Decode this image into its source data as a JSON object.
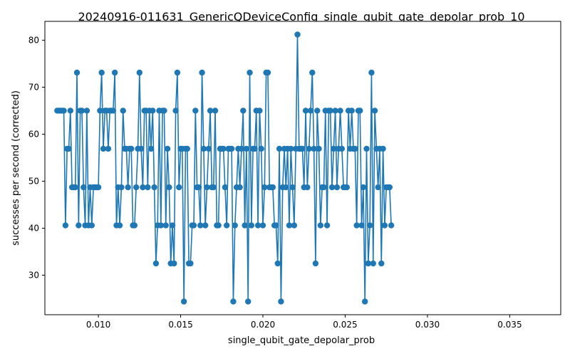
{
  "chart_data": {
    "type": "line",
    "title": "20240916-011631_GenericQDeviceConfig_single_qubit_gate_depolar_prob_10",
    "xlabel": "single_qubit_gate_depolar_prob",
    "ylabel": "successes per second (corrected)",
    "xlim": [
      0.00675,
      0.0381
    ],
    "ylim": [
      21.6,
      84.0
    ],
    "xticks": [
      0.01,
      0.015,
      0.02,
      0.025,
      0.03,
      0.035
    ],
    "xtick_labels": [
      "0.010",
      "0.015",
      "0.020",
      "0.025",
      "0.030",
      "0.035"
    ],
    "yticks": [
      30,
      40,
      50,
      60,
      70,
      80
    ],
    "ytick_labels": [
      "30",
      "40",
      "50",
      "60",
      "70",
      "80"
    ],
    "grid": false,
    "legend": "none",
    "series_color": "#1f77b4",
    "x_start": 0.0075,
    "x_step": 0.0001,
    "y": [
      65,
      65,
      65,
      65,
      65,
      40.6,
      56.9,
      56.9,
      65,
      48.7,
      48.7,
      48.7,
      73.1,
      40.6,
      65,
      65,
      48.7,
      40.6,
      65,
      40.6,
      48.7,
      40.6,
      48.7,
      48.7,
      48.7,
      48.7,
      65,
      73.1,
      56.9,
      65,
      65,
      56.9,
      65,
      65,
      65,
      73.1,
      40.6,
      48.7,
      40.6,
      48.7,
      65,
      56.9,
      56.9,
      48.7,
      56.9,
      56.9,
      40.6,
      40.6,
      48.7,
      56.9,
      73.1,
      56.9,
      48.7,
      65,
      65,
      48.7,
      65,
      56.9,
      65,
      48.7,
      32.5,
      40.6,
      65,
      40.6,
      65,
      65,
      40.6,
      56.9,
      48.7,
      32.5,
      40.6,
      32.5,
      65,
      73.1,
      48.7,
      56.9,
      56.9,
      24.4,
      56.9,
      56.9,
      32.5,
      32.5,
      40.6,
      40.6,
      65,
      48.7,
      48.7,
      40.6,
      73.1,
      56.9,
      40.6,
      48.7,
      56.9,
      65,
      48.7,
      48.7,
      65,
      40.6,
      40.6,
      56.9,
      56.9,
      56.9,
      48.7,
      40.6,
      56.9,
      56.9,
      56.9,
      24.4,
      40.6,
      48.7,
      56.9,
      48.7,
      56.9,
      65,
      40.6,
      56.9,
      24.4,
      73.1,
      40.6,
      56.9,
      56.9,
      65,
      40.6,
      65,
      56.9,
      40.6,
      48.7,
      73.1,
      73.1,
      48.7,
      48.7,
      48.7,
      40.6,
      40.6,
      32.5,
      56.9,
      24.4,
      48.7,
      56.9,
      48.7,
      56.9,
      40.6,
      56.9,
      48.7,
      40.6,
      56.9,
      81.2,
      56.9,
      56.9,
      56.9,
      48.7,
      65,
      48.7,
      56.9,
      65,
      73.1,
      56.9,
      32.5,
      65,
      56.9,
      40.6,
      48.7,
      48.7,
      65,
      40.6,
      65,
      65,
      48.7,
      56.9,
      65,
      48.7,
      56.9,
      65,
      56.9,
      48.7,
      48.7,
      48.7,
      65,
      56.9,
      65,
      56.9,
      56.9,
      40.6,
      65,
      65,
      40.6,
      48.7,
      24.4,
      56.9,
      32.5,
      40.6,
      73.1,
      32.5,
      65,
      56.9,
      48.7,
      56.9,
      32.5,
      56.9,
      40.6,
      48.7,
      48.7,
      48.7,
      40.6
    ]
  }
}
